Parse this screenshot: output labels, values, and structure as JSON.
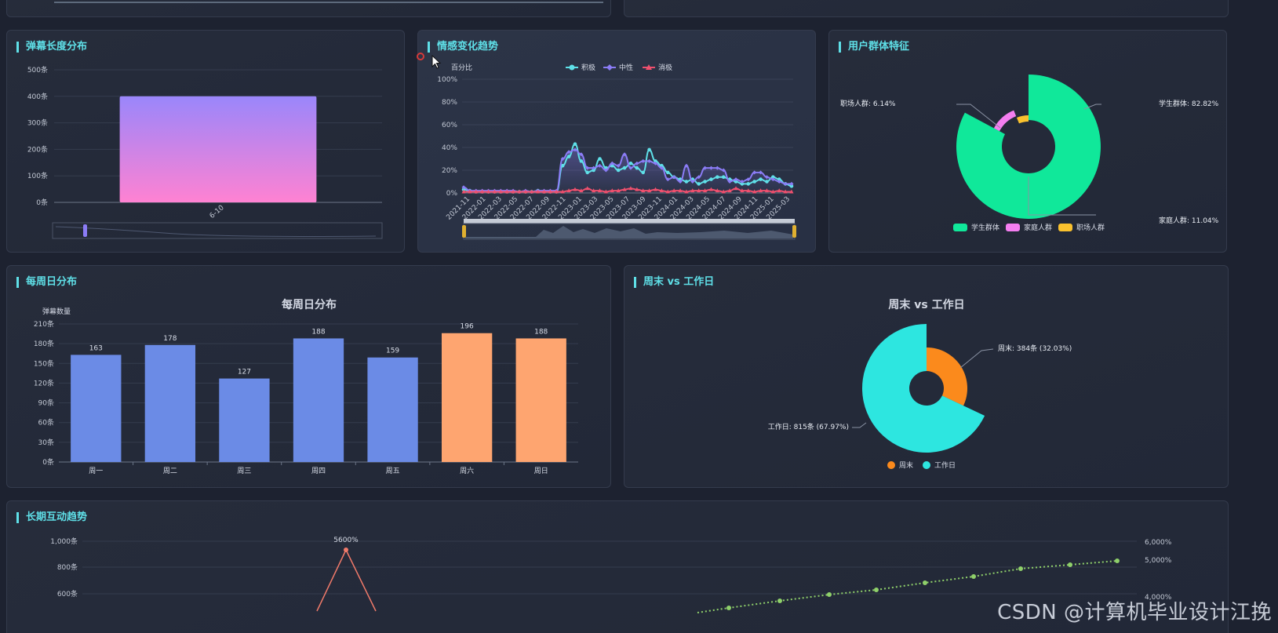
{
  "panels": {
    "length": {
      "title": "弹幕长度分布"
    },
    "sentiment": {
      "title": "情感变化趋势"
    },
    "groups": {
      "title": "用户群体特征"
    },
    "weekday": {
      "title": "每周日分布"
    },
    "weekend": {
      "title": "周末 vs 工作日"
    },
    "longterm": {
      "title": "长期互动趋势"
    }
  },
  "watermark": "CSDN @计算机毕业设计江挽",
  "colors": {
    "accent": "#5fe0e8",
    "positive": "#5fe0e8",
    "neutral": "#8b7cf6",
    "negative": "#f0506e",
    "student": "#10e89a",
    "family": "#f47ef0",
    "work": "#f9c12e",
    "weekday_bar": "#6b8be6",
    "weekend_bar": "#fea570",
    "weekend_slice": "#fb8a1c",
    "workday_slice": "#2de6e0"
  },
  "chart_data": [
    {
      "id": "length",
      "type": "bar",
      "categories": [
        "6-10"
      ],
      "values": [
        400
      ],
      "yticks": [
        "0条",
        "100条",
        "200条",
        "300条",
        "400条",
        "500条"
      ],
      "ylim": [
        0,
        500
      ],
      "grid": true,
      "has_datazoom": true
    },
    {
      "id": "sentiment",
      "type": "line",
      "ylabel": "百分比",
      "yticks": [
        "0%",
        "20%",
        "40%",
        "60%",
        "80%",
        "100%"
      ],
      "ylim": [
        0,
        100
      ],
      "xticks": [
        "2021-11",
        "2022-01",
        "2022-03",
        "2022-05",
        "2022-07",
        "2022-09",
        "2022-11",
        "2023-01",
        "2023-03",
        "2023-05",
        "2023-07",
        "2023-09",
        "2023-11",
        "2024-01",
        "2024-03",
        "2024-05",
        "2024-07",
        "2024-09",
        "2024-11",
        "2025-01",
        "2025-03"
      ],
      "legend": [
        "积极",
        "中性",
        "消极"
      ],
      "legend_position": "top",
      "series": [
        {
          "name": "积极",
          "values": [
            3,
            2,
            1,
            1,
            1,
            1,
            1,
            1,
            1,
            1,
            1,
            1,
            2,
            1,
            1,
            1,
            24,
            32,
            43,
            28,
            18,
            20,
            30,
            22,
            24,
            20,
            22,
            26,
            22,
            18,
            38,
            28,
            24,
            18,
            14,
            12,
            10,
            12,
            8,
            10,
            12,
            14,
            14,
            12,
            10,
            8,
            8,
            10,
            12,
            10,
            14,
            12,
            8,
            6
          ]
        },
        {
          "name": "中性",
          "values": [
            5,
            2,
            2,
            2,
            2,
            2,
            2,
            2,
            2,
            1,
            2,
            1,
            2,
            2,
            2,
            2,
            30,
            36,
            38,
            34,
            22,
            22,
            24,
            20,
            26,
            24,
            34,
            22,
            26,
            28,
            28,
            26,
            22,
            12,
            14,
            10,
            24,
            10,
            14,
            22,
            22,
            22,
            20,
            10,
            12,
            10,
            12,
            18,
            18,
            14,
            12,
            10,
            8,
            8
          ]
        },
        {
          "name": "消极",
          "values": [
            1,
            1,
            1,
            1,
            1,
            1,
            1,
            1,
            1,
            1,
            1,
            1,
            1,
            1,
            1,
            1,
            1,
            2,
            3,
            2,
            4,
            2,
            2,
            1,
            2,
            2,
            3,
            4,
            3,
            2,
            2,
            3,
            2,
            1,
            2,
            2,
            1,
            2,
            2,
            2,
            3,
            2,
            1,
            2,
            4,
            2,
            2,
            1,
            2,
            2,
            1,
            2,
            1,
            1
          ]
        }
      ],
      "has_datazoom": true
    },
    {
      "id": "groups",
      "type": "pie",
      "labels": [
        "学生群体",
        "家庭人群",
        "职场人群"
      ],
      "values": [
        82.82,
        11.04,
        6.14
      ],
      "slice_labels": [
        "学生群体: 82.82%",
        "家庭人群: 11.04%",
        "职场人群: 6.14%"
      ],
      "legend_position": "bottom"
    },
    {
      "id": "weekday",
      "type": "bar",
      "title": "每周日分布",
      "ylabel": "弹幕数量",
      "categories": [
        "周一",
        "周二",
        "周三",
        "周四",
        "周五",
        "周六",
        "周日"
      ],
      "values": [
        163,
        178,
        127,
        188,
        159,
        196,
        188
      ],
      "yticks": [
        "0条",
        "30条",
        "60条",
        "90条",
        "120条",
        "150条",
        "180条",
        "210条"
      ],
      "ylim": [
        0,
        210
      ]
    },
    {
      "id": "weekend",
      "type": "pie",
      "title": "周末 vs 工作日",
      "labels": [
        "周末",
        "工作日"
      ],
      "values": [
        384,
        815
      ],
      "slice_labels": [
        "周末: 384条 (32.03%)",
        "工作日: 815条 (67.97%)"
      ],
      "legend_position": "bottom"
    },
    {
      "id": "longterm",
      "type": "line",
      "yticks_left": [
        "600条",
        "800条",
        "1,000条"
      ],
      "yticks_right": [
        "4,000%",
        "5,000%",
        "6,000%"
      ],
      "peak_label": "5600%"
    }
  ]
}
